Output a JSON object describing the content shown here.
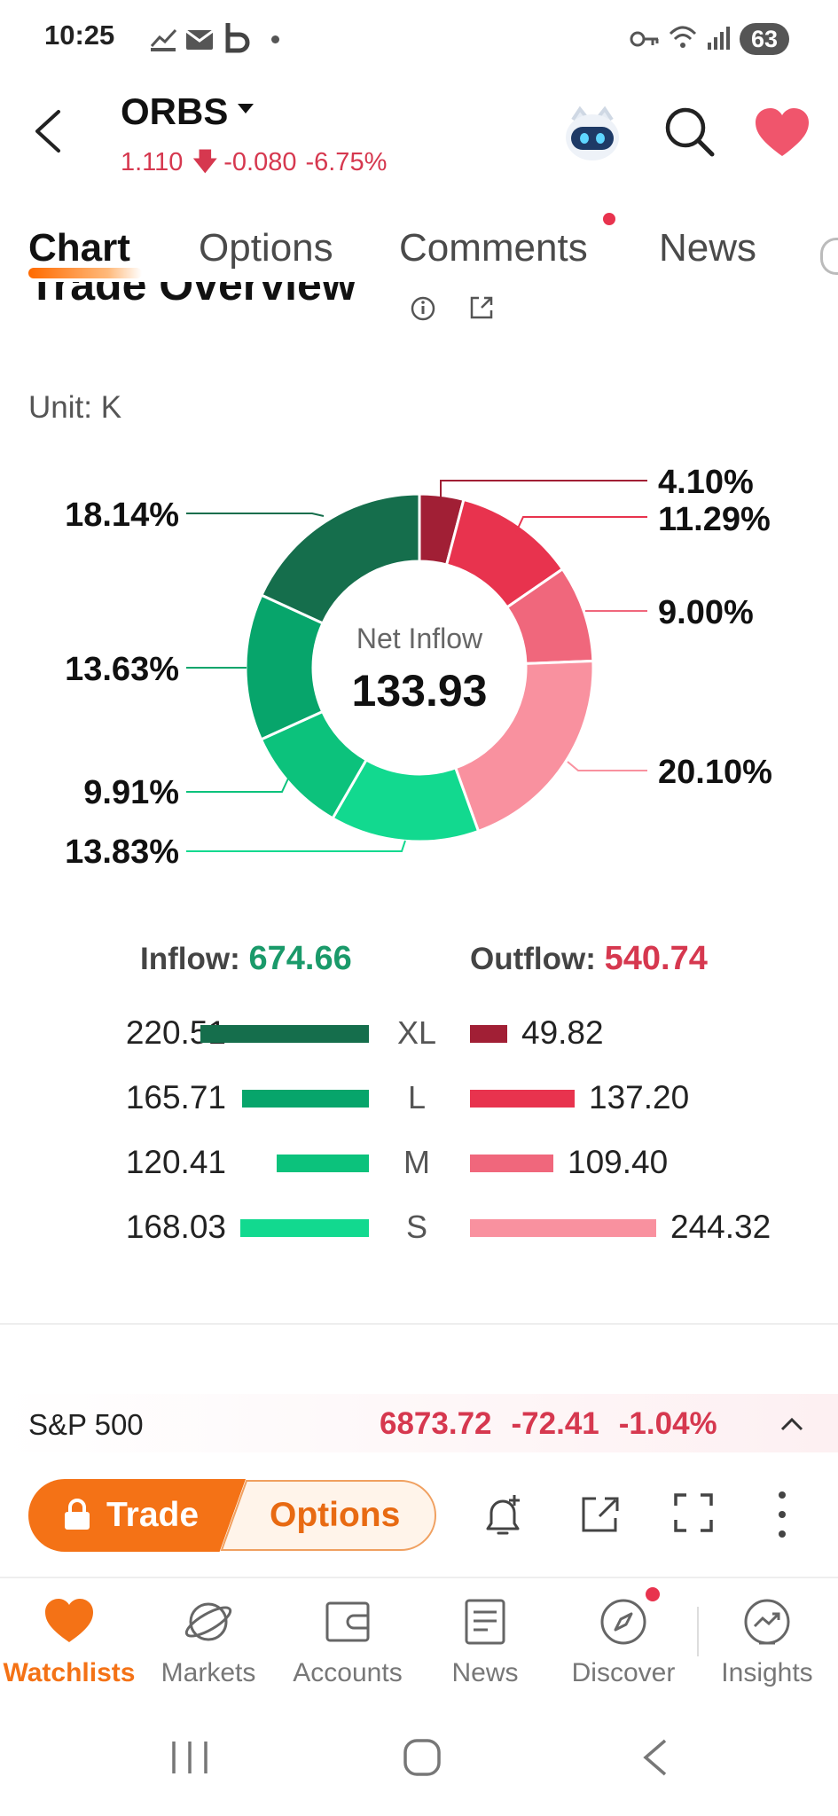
{
  "status_bar": {
    "time": "10:25",
    "battery": "63"
  },
  "header": {
    "ticker": "ORBS",
    "price": "1.110",
    "change": "-0.080",
    "change_pct": "-6.75%"
  },
  "tabs": [
    {
      "label": "Chart",
      "active": true
    },
    {
      "label": "Options"
    },
    {
      "label": "Comments",
      "has_badge": true
    },
    {
      "label": "News"
    }
  ],
  "section": {
    "title": "Trade Overview",
    "unit": "Unit: K"
  },
  "chart_data": {
    "type": "pie",
    "center_label": "Net Inflow",
    "center_value": "133.93",
    "slices": [
      {
        "label": "4.10%",
        "value": 4.1,
        "color": "#a11f35"
      },
      {
        "label": "11.29%",
        "value": 11.29,
        "color": "#e8334e"
      },
      {
        "label": "9.00%",
        "value": 9.0,
        "color": "#f0677c"
      },
      {
        "label": "20.10%",
        "value": 20.1,
        "color": "#f9919f"
      },
      {
        "label": "13.83%",
        "value": 13.83,
        "color": "#12d98f"
      },
      {
        "label": "9.91%",
        "value": 9.91,
        "color": "#0cc27c"
      },
      {
        "label": "13.63%",
        "value": 13.63,
        "color": "#07a56b"
      },
      {
        "label": "18.14%",
        "value": 18.14,
        "color": "#156e4c"
      }
    ]
  },
  "flow": {
    "inflow_label": "Inflow:",
    "inflow_value": "674.66",
    "outflow_label": "Outflow:",
    "outflow_value": "540.74",
    "rows": [
      {
        "category": "XL",
        "inflow": "220.51",
        "outflow": "49.82",
        "in_color": "#156e4c",
        "out_color": "#a11f35"
      },
      {
        "category": "L",
        "inflow": "165.71",
        "outflow": "137.20",
        "in_color": "#07a56b",
        "out_color": "#e8334e"
      },
      {
        "category": "M",
        "inflow": "120.41",
        "outflow": "109.40",
        "in_color": "#0cc27c",
        "out_color": "#f0677c"
      },
      {
        "category": "S",
        "inflow": "168.03",
        "outflow": "244.32",
        "in_color": "#12d98f",
        "out_color": "#f9919f"
      }
    ]
  },
  "index_strip": {
    "name": "S&P 500",
    "value": "6873.72",
    "change": "-72.41",
    "change_pct": "-1.04%"
  },
  "actions": {
    "trade_label": "Trade",
    "options_label": "Options"
  },
  "bottom_nav": [
    {
      "label": "Watchlists",
      "icon": "heart-icon",
      "active": true
    },
    {
      "label": "Markets",
      "icon": "planet-icon"
    },
    {
      "label": "Accounts",
      "icon": "wallet-icon"
    },
    {
      "label": "News",
      "icon": "document-icon"
    },
    {
      "label": "Discover",
      "icon": "compass-icon",
      "has_badge": true
    },
    {
      "label": "Insights",
      "icon": "trend-icon"
    }
  ]
}
